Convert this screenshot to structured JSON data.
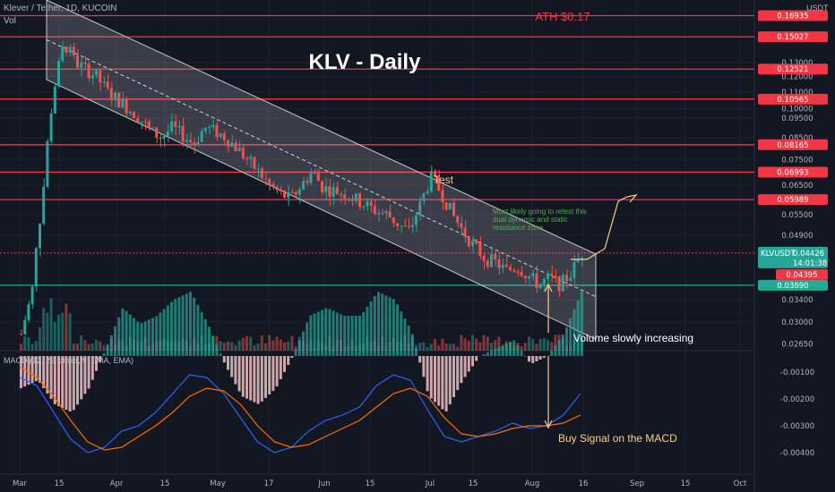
{
  "header": {
    "pair_line": "Klever / Tether, 1D, KUCOIN",
    "vol_label": "Vol",
    "macd_label": "MACD (12, 26, close, 9, EMA, EMA)",
    "currency": "USDT"
  },
  "annotations": {
    "title": "KLV - Daily",
    "ath": "ATH $0.17",
    "test": "Test",
    "retest_note_1": "Most likely going to retest this",
    "retest_note_2": "dual dynamic and static",
    "retest_note_3": "resistance zone",
    "volume_note": "Volume slowly increasing",
    "macd_note": "Buy Signal on the MACD"
  },
  "price_axis": {
    "ticks": [
      "0.13000",
      "0.12000",
      "0.11000",
      "0.10000",
      "0.09500",
      "0.08500",
      "0.07500",
      "0.06500",
      "0.05500",
      "0.04900",
      "0.03400",
      "0.03000",
      "0.02650"
    ],
    "tick_values": [
      0.13,
      0.12,
      0.11,
      0.1,
      0.095,
      0.085,
      0.075,
      0.065,
      0.055,
      0.049,
      0.034,
      0.03,
      0.0265
    ]
  },
  "macd_axis": {
    "ticks": [
      "-0.00100",
      "-0.00200",
      "-0.00300",
      "-0.00400"
    ],
    "tick_values": [
      -0.001,
      -0.002,
      -0.003,
      -0.004
    ]
  },
  "resistance_levels": [
    {
      "label": "0.16935",
      "value": 0.16935
    },
    {
      "label": "0.15027",
      "value": 0.15027
    },
    {
      "label": "0.12521",
      "value": 0.12521
    },
    {
      "label": "0.10565",
      "value": 0.10565
    },
    {
      "label": "0.08165",
      "value": 0.08165
    },
    {
      "label": "0.06993",
      "value": 0.06993
    },
    {
      "label": "0.05989",
      "value": 0.05989
    }
  ],
  "support_level": {
    "label": "0.03690",
    "value": 0.0369
  },
  "current_price": {
    "symbol": "KLVUSDT",
    "label": "0.04426",
    "countdown": "14:01:38",
    "value": 0.04426
  },
  "last_low": {
    "label": "0.04395",
    "value": 0.04395
  },
  "x_axis": {
    "ticks": [
      "Mar",
      "15",
      "Apr",
      "15",
      "May",
      "17",
      "Jun",
      "15",
      "Jul",
      "15",
      "Aug",
      "16",
      "Sep",
      "15",
      "Oct"
    ]
  },
  "chart_data": {
    "type": "candlestick",
    "symbol": "KLVUSDT",
    "exchange": "KUCOIN",
    "timeframe": "1D",
    "x_range": [
      "Mar",
      "Oct"
    ],
    "y_scale": "log",
    "y_range_approx": [
      0.0255,
      0.185
    ],
    "channel": {
      "type": "descending",
      "upper_start": 0.185,
      "upper_end": 0.044,
      "lower_start": 0.118,
      "lower_end": 0.0272
    },
    "price_path_approx": [
      0.028,
      0.035,
      0.06,
      0.11,
      0.145,
      0.13,
      0.125,
      0.12,
      0.11,
      0.105,
      0.1,
      0.095,
      0.088,
      0.085,
      0.09,
      0.086,
      0.082,
      0.09,
      0.088,
      0.085,
      0.08,
      0.075,
      0.07,
      0.065,
      0.062,
      0.06,
      0.065,
      0.07,
      0.064,
      0.063,
      0.062,
      0.06,
      0.058,
      0.056,
      0.055,
      0.052,
      0.05,
      0.058,
      0.068,
      0.062,
      0.055,
      0.05,
      0.046,
      0.043,
      0.042,
      0.04,
      0.041,
      0.039,
      0.037,
      0.0385,
      0.037,
      0.0395,
      0.0443
    ],
    "macd_path_approx": [
      -0.0012,
      -0.0015,
      -0.0025,
      -0.0035,
      -0.004,
      -0.0038,
      -0.0032,
      -0.003,
      -0.0025,
      -0.0018,
      -0.0011,
      -0.0012,
      -0.0018,
      -0.0027,
      -0.0036,
      -0.004,
      -0.0038,
      -0.0032,
      -0.0028,
      -0.0026,
      -0.0023,
      -0.0015,
      -0.0011,
      -0.0013,
      -0.0024,
      -0.0034,
      -0.0036,
      -0.0034,
      -0.0032,
      -0.0029,
      -0.0031,
      -0.003,
      -0.0026,
      -0.0018
    ],
    "signal_path_approx": [
      -0.0008,
      -0.0012,
      -0.0019,
      -0.0028,
      -0.0036,
      -0.0039,
      -0.0038,
      -0.0034,
      -0.003,
      -0.0025,
      -0.0019,
      -0.0016,
      -0.0017,
      -0.0022,
      -0.003,
      -0.0036,
      -0.0038,
      -0.0037,
      -0.0034,
      -0.0031,
      -0.0028,
      -0.0023,
      -0.0018,
      -0.0016,
      -0.0019,
      -0.0027,
      -0.0033,
      -0.0034,
      -0.0033,
      -0.0031,
      -0.003,
      -0.003,
      -0.0029,
      -0.0026
    ],
    "macd_ylim": [
      -0.0048,
      -0.0004
    ]
  }
}
